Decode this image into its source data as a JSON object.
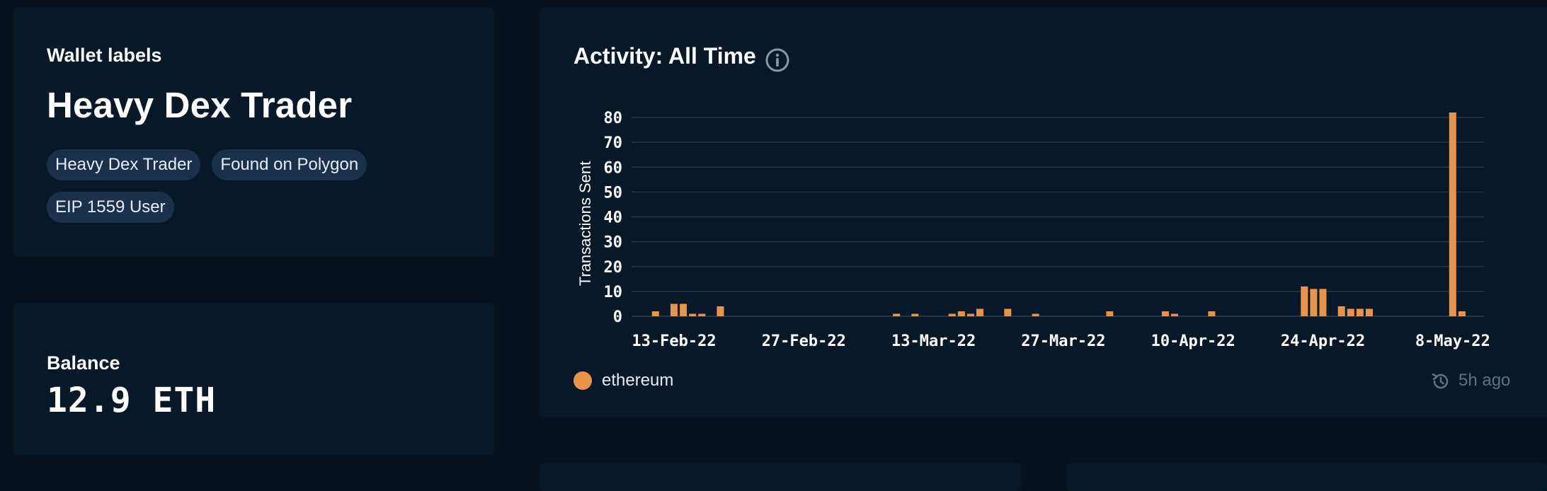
{
  "labels_card": {
    "heading": "Wallet labels",
    "primary_label": "Heavy Dex Trader",
    "tags": [
      "Heavy Dex Trader",
      "Found on Polygon",
      "EIP 1559 User"
    ]
  },
  "balance_card": {
    "heading": "Balance",
    "value": "12.9 ETH"
  },
  "activity_card": {
    "title": "Activity: All Time",
    "info_icon": "info-circle-icon",
    "updated": "5h ago",
    "refresh_icon": "refresh-clock-icon"
  },
  "colors": {
    "background": "#06121e",
    "card": "#071829",
    "tag": "#1b3049",
    "bar": "#e8944a",
    "grid": "#21344a",
    "muted": "#5f7186"
  },
  "chart_data": {
    "type": "bar",
    "title": "",
    "ylabel": "Transactions Sent",
    "xlabel": "",
    "ylim": [
      0,
      80
    ],
    "yticks": [
      0,
      10,
      20,
      30,
      40,
      50,
      60,
      70,
      80
    ],
    "x_ticks": [
      "13-Feb-22",
      "27-Feb-22",
      "13-Mar-22",
      "27-Mar-22",
      "10-Apr-22",
      "24-Apr-22",
      "8-May-22"
    ],
    "grid": true,
    "legend_position": "bottom-left",
    "series": [
      {
        "name": "ethereum",
        "color": "#e8944a",
        "x": [
          "2022-02-11",
          "2022-02-13",
          "2022-02-14",
          "2022-02-15",
          "2022-02-16",
          "2022-02-18",
          "2022-03-09",
          "2022-03-11",
          "2022-03-15",
          "2022-03-16",
          "2022-03-17",
          "2022-03-18",
          "2022-03-21",
          "2022-03-24",
          "2022-04-01",
          "2022-04-07",
          "2022-04-08",
          "2022-04-12",
          "2022-04-22",
          "2022-04-23",
          "2022-04-24",
          "2022-04-26",
          "2022-04-27",
          "2022-04-28",
          "2022-04-29",
          "2022-05-08",
          "2022-05-09"
        ],
        "values": [
          2,
          5,
          5,
          1,
          1,
          4,
          1,
          1,
          1,
          2,
          1,
          3,
          3,
          1,
          2,
          2,
          1,
          2,
          12,
          11,
          11,
          4,
          3,
          3,
          3,
          82,
          2
        ]
      }
    ]
  }
}
